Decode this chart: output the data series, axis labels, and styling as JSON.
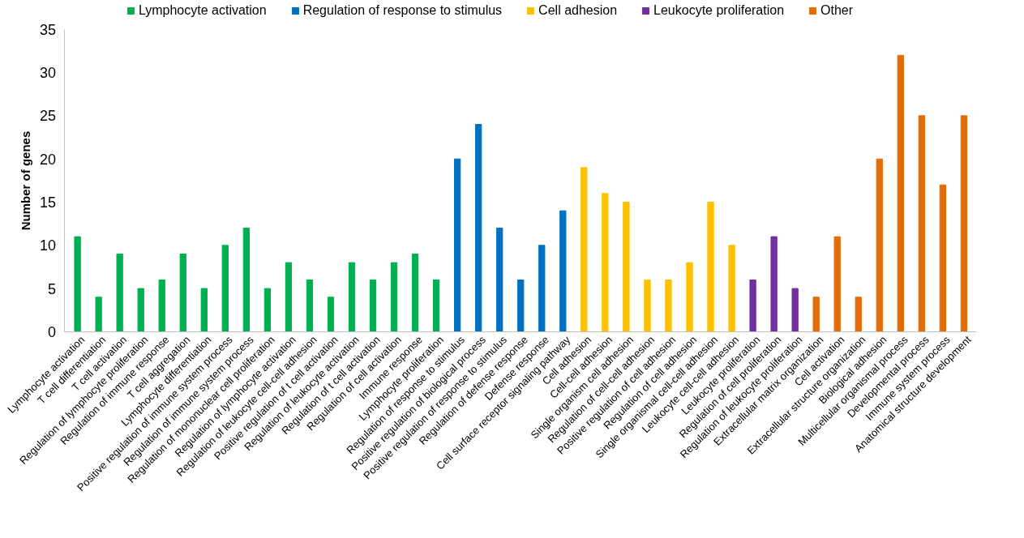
{
  "chart_data": {
    "type": "bar",
    "ylabel": "Number of genes",
    "categories": [
      "Lymphocyte activation",
      "T cell differentiation",
      "T cell activation",
      "Regulation of lymphocyte proliferation",
      "Regulation of immune response",
      "T cell aggregation",
      "Lymphocyte differentiation",
      "Positive regulation of immune system process",
      "Regulation of immune system process",
      "Regulation of mononuclear cell proliferation",
      "Regulation of lymphocyte activation",
      "Regulation of leukocyte cell-cell adhesion",
      "Positive regulation of t cell activation",
      "Regulation of leukocyte activation",
      "Regulation of t cell activation",
      "Regulation of cell activation",
      "Immune response",
      "Lymphocyte proliferation",
      "Regulation of response to stimulus",
      "Positive regulation of biological process",
      "Positive regulation of response to stimulus",
      "Regulation of defense response",
      "Defense response",
      "Cell surface receptor signaling pathway",
      "Cell adhesion",
      "Cell-cell adhesion",
      "Single organism cell adhesion",
      "Regulation of cell-cell adhesion",
      "Positive regulation of cell adhesion",
      "Regulation of cell adhesion",
      "Single organismal cell-cell adhesion",
      "Leukocyte cell-cell adhesion",
      "Leukocyte proliferation",
      "Regulation of cell proliferation",
      "Regulation of leukocyte proliferation",
      "Extracellular matrix organization",
      "Cell activation",
      "Extracellular structure organization",
      "Biological adhesion",
      "Multicellular organismal process",
      "Developmental process",
      "Immune system process",
      "Anatomical structure development"
    ],
    "series": [
      {
        "name": "Lymphocyte activation",
        "color": "#00b050",
        "values": [
          11,
          4,
          9,
          5,
          6,
          9,
          5,
          10,
          12,
          5,
          8,
          6,
          4,
          8,
          6,
          8,
          9,
          6,
          null,
          null,
          null,
          null,
          null,
          null,
          null,
          null,
          null,
          null,
          null,
          null,
          null,
          null,
          null,
          null,
          null,
          null,
          null,
          null,
          null,
          null,
          null,
          null,
          null
        ]
      },
      {
        "name": "Regulation of response to stimulus",
        "color": "#0070c0",
        "values": [
          null,
          null,
          null,
          null,
          null,
          null,
          null,
          null,
          null,
          null,
          null,
          null,
          null,
          null,
          null,
          null,
          null,
          null,
          20,
          24,
          12,
          6,
          10,
          14,
          null,
          null,
          null,
          null,
          null,
          null,
          null,
          null,
          null,
          null,
          null,
          null,
          null,
          null,
          null,
          null,
          null,
          null,
          null
        ]
      },
      {
        "name": "Cell adhesion",
        "color": "#ffc000",
        "values": [
          null,
          null,
          null,
          null,
          null,
          null,
          null,
          null,
          null,
          null,
          null,
          null,
          null,
          null,
          null,
          null,
          null,
          null,
          null,
          null,
          null,
          null,
          null,
          null,
          19,
          16,
          15,
          6,
          6,
          8,
          15,
          10,
          null,
          null,
          null,
          null,
          null,
          null,
          null,
          null,
          null,
          null,
          null
        ]
      },
      {
        "name": "Leukocyte proliferation",
        "color": "#7030a0",
        "values": [
          null,
          null,
          null,
          null,
          null,
          null,
          null,
          null,
          null,
          null,
          null,
          null,
          null,
          null,
          null,
          null,
          null,
          null,
          null,
          null,
          null,
          null,
          null,
          null,
          null,
          null,
          null,
          null,
          null,
          null,
          null,
          null,
          6,
          11,
          5,
          null,
          null,
          null,
          null,
          null,
          null,
          null,
          null
        ]
      },
      {
        "name": "Other",
        "color": "#e36c09",
        "values": [
          null,
          null,
          null,
          null,
          null,
          null,
          null,
          null,
          null,
          null,
          null,
          null,
          null,
          null,
          null,
          null,
          null,
          null,
          null,
          null,
          null,
          null,
          null,
          null,
          null,
          null,
          null,
          null,
          null,
          null,
          null,
          null,
          null,
          null,
          null,
          4,
          11,
          4,
          20,
          32,
          25,
          17,
          25
        ]
      }
    ],
    "ylim": [
      0,
      35
    ],
    "yticks": [
      0,
      5,
      10,
      15,
      20,
      25,
      30,
      35
    ],
    "grid": false,
    "legend": "top"
  }
}
